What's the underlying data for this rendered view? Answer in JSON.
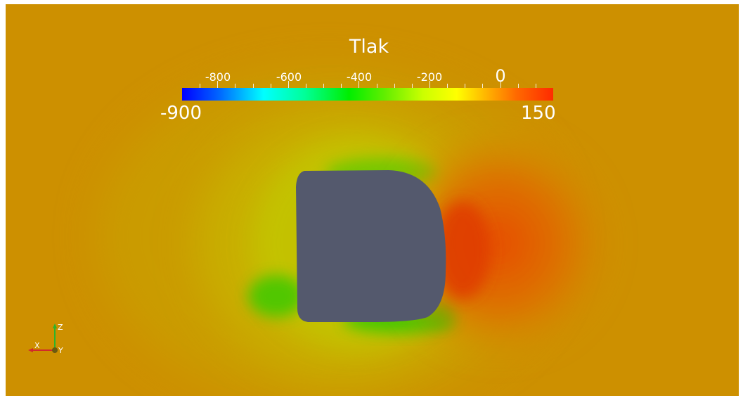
{
  "colorbar": {
    "title": "Tlak",
    "min_label": "-900",
    "max_label": "150",
    "tick_labels": [
      "-800",
      "-600",
      "-400",
      "-200"
    ],
    "zero_label": "0",
    "range": [
      -900,
      150
    ],
    "colormap": "rainbow (blue-cyan-green-yellow-red)"
  },
  "axes_triad": {
    "labels": {
      "x": "X",
      "y": "Y",
      "z": "Z"
    },
    "colors": {
      "x": "#d12a2a",
      "y": "#d8c800",
      "z": "#2bb52b"
    }
  },
  "scene": {
    "background_color": "#cd9000",
    "body_color": "#54596d"
  }
}
